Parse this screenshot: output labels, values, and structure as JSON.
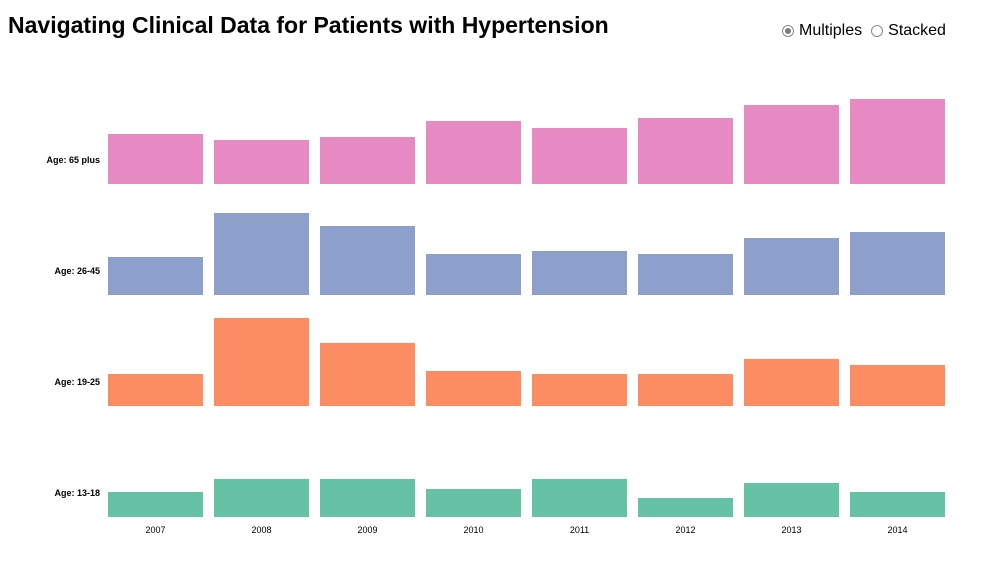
{
  "title": "Navigating Clinical Data for Patients with Hypertension",
  "view_toggle": {
    "options": [
      {
        "label": "Multiples",
        "selected": true
      },
      {
        "label": "Stacked",
        "selected": false
      }
    ]
  },
  "chart_data": {
    "type": "bar",
    "layout": "small-multiples",
    "categories": [
      "2007",
      "2008",
      "2009",
      "2010",
      "2011",
      "2012",
      "2013",
      "2014"
    ],
    "series": [
      {
        "name": "Age: 65 plus",
        "color": "#e78ac3",
        "values": [
          50,
          44,
          47,
          63,
          56,
          66,
          79,
          85
        ]
      },
      {
        "name": "Age: 26-45",
        "color": "#8da0cb",
        "values": [
          38,
          82,
          69,
          41,
          44,
          41,
          57,
          63
        ]
      },
      {
        "name": "Age: 19-25",
        "color": "#fc8d62",
        "values": [
          32,
          88,
          63,
          35,
          32,
          32,
          47,
          41
        ]
      },
      {
        "name": "Age: 13-18",
        "color": "#66c2a5",
        "values": [
          25,
          38,
          38,
          28,
          38,
          19,
          34,
          25
        ]
      }
    ],
    "ylim": [
      0,
      100
    ],
    "grid": false,
    "legend": "none"
  }
}
